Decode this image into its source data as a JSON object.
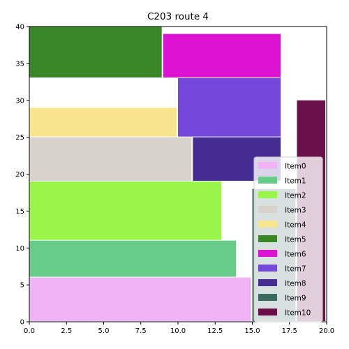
{
  "chart_data": {
    "type": "rectangle-packing",
    "title": "C203 route 4",
    "xlabel": "",
    "ylabel": "",
    "xlim": [
      0,
      20
    ],
    "ylim": [
      0,
      40
    ],
    "xticks": [
      "0.0",
      "2.5",
      "5.0",
      "7.5",
      "10.0",
      "12.5",
      "15.0",
      "17.5",
      "20.0"
    ],
    "yticks": [
      "0",
      "5",
      "10",
      "15",
      "20",
      "25",
      "30",
      "35",
      "40"
    ],
    "grid": false,
    "legend_position": "lower-right",
    "items": [
      {
        "name": "Item0",
        "x": 0,
        "y": 0,
        "w": 15,
        "h": 6,
        "color": "#f0b3f5"
      },
      {
        "name": "Item1",
        "x": 0,
        "y": 6,
        "w": 14,
        "h": 5,
        "color": "#66cc88"
      },
      {
        "name": "Item2",
        "x": 0,
        "y": 11,
        "w": 13,
        "h": 8,
        "color": "#99f54a"
      },
      {
        "name": "Item3",
        "x": 0,
        "y": 19,
        "w": 11,
        "h": 6,
        "color": "#d8d2cc"
      },
      {
        "name": "Item4",
        "x": 0,
        "y": 25,
        "w": 10,
        "h": 4,
        "color": "#f7e68e"
      },
      {
        "name": "Item5",
        "x": 0,
        "y": 33,
        "w": 9,
        "h": 7,
        "color": "#3a8727"
      },
      {
        "name": "Item6",
        "x": 9,
        "y": 33,
        "w": 8,
        "h": 6,
        "color": "#dc14d2"
      },
      {
        "name": "Item7",
        "x": 10,
        "y": 25,
        "w": 7,
        "h": 8,
        "color": "#7448db"
      },
      {
        "name": "Item8",
        "x": 11,
        "y": 19,
        "w": 6,
        "h": 6,
        "color": "#462d94"
      },
      {
        "name": "Item9",
        "x": 15,
        "y": 0,
        "w": 3,
        "h": 18,
        "color": "#3c6b5e"
      },
      {
        "name": "Item10",
        "x": 18,
        "y": 0,
        "w": 2,
        "h": 30,
        "color": "#6a0f4a"
      }
    ]
  }
}
